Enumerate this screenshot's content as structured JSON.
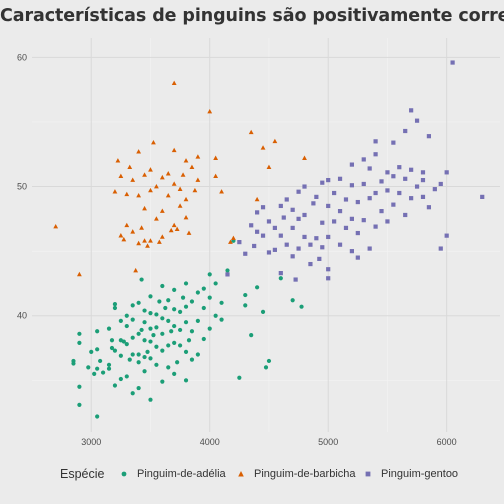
{
  "chart_data": {
    "type": "scatter",
    "title": "Características de pinguins são positivamente correlacionadas",
    "xlabel": "",
    "ylabel": "",
    "x_ticks": [
      3000,
      4000,
      5000,
      6000
    ],
    "y_ticks": [
      40,
      50,
      60
    ],
    "xlim": [
      2500,
      6450
    ],
    "ylim": [
      31,
      61.5
    ],
    "grid": true,
    "legend": {
      "title": "Espécie",
      "position": "bottom"
    },
    "series": [
      {
        "name": "Pinguim-de-adélia",
        "color": "#1b9e77",
        "marker": "circle",
        "points": [
          [
            2850,
            36.5
          ],
          [
            2850,
            36.3
          ],
          [
            2900,
            33.1
          ],
          [
            2900,
            34.5
          ],
          [
            2900,
            37.9
          ],
          [
            2900,
            38.6
          ],
          [
            2975,
            36.0
          ],
          [
            3000,
            37.2
          ],
          [
            3025,
            35.5
          ],
          [
            3050,
            32.2
          ],
          [
            3050,
            35.9
          ],
          [
            3050,
            37.4
          ],
          [
            3050,
            38.8
          ],
          [
            3075,
            36.5
          ],
          [
            3100,
            35.6
          ],
          [
            3150,
            35.9
          ],
          [
            3150,
            36.2
          ],
          [
            3150,
            39.0
          ],
          [
            3175,
            37.5
          ],
          [
            3175,
            38.1
          ],
          [
            3200,
            34.6
          ],
          [
            3200,
            37.3
          ],
          [
            3200,
            40.6
          ],
          [
            3200,
            40.9
          ],
          [
            3250,
            35.1
          ],
          [
            3250,
            36.9
          ],
          [
            3250,
            38.1
          ],
          [
            3250,
            39.6
          ],
          [
            3275,
            38.0
          ],
          [
            3300,
            35.3
          ],
          [
            3300,
            37.8
          ],
          [
            3300,
            39.2
          ],
          [
            3300,
            40.0
          ],
          [
            3325,
            36.6
          ],
          [
            3350,
            34.0
          ],
          [
            3350,
            37.0
          ],
          [
            3350,
            38.3
          ],
          [
            3350,
            39.7
          ],
          [
            3350,
            40.8
          ],
          [
            3400,
            34.4
          ],
          [
            3400,
            36.4
          ],
          [
            3400,
            37.0
          ],
          [
            3400,
            38.6
          ],
          [
            3400,
            41.0
          ],
          [
            3425,
            38.9
          ],
          [
            3425,
            42.8
          ],
          [
            3450,
            35.7
          ],
          [
            3450,
            36.8
          ],
          [
            3450,
            38.1
          ],
          [
            3450,
            39.5
          ],
          [
            3450,
            40.4
          ],
          [
            3475,
            37.2
          ],
          [
            3500,
            33.5
          ],
          [
            3500,
            36.7
          ],
          [
            3500,
            38.0
          ],
          [
            3500,
            39.0
          ],
          [
            3500,
            40.2
          ],
          [
            3500,
            41.5
          ],
          [
            3525,
            38.5
          ],
          [
            3550,
            36.2
          ],
          [
            3550,
            37.6
          ],
          [
            3550,
            39.1
          ],
          [
            3550,
            40.1
          ],
          [
            3575,
            41.1
          ],
          [
            3600,
            34.9
          ],
          [
            3600,
            37.3
          ],
          [
            3600,
            38.6
          ],
          [
            3600,
            39.8
          ],
          [
            3600,
            42.3
          ],
          [
            3625,
            40.6
          ],
          [
            3650,
            36.0
          ],
          [
            3650,
            37.7
          ],
          [
            3650,
            39.6
          ],
          [
            3650,
            41.2
          ],
          [
            3675,
            38.8
          ],
          [
            3700,
            35.5
          ],
          [
            3700,
            37.9
          ],
          [
            3700,
            39.2
          ],
          [
            3700,
            40.5
          ],
          [
            3700,
            42.0
          ],
          [
            3725,
            36.4
          ],
          [
            3750,
            37.7
          ],
          [
            3750,
            38.9
          ],
          [
            3750,
            40.3
          ],
          [
            3775,
            41.4
          ],
          [
            3800,
            35.0
          ],
          [
            3800,
            37.2
          ],
          [
            3800,
            39.5
          ],
          [
            3800,
            40.7
          ],
          [
            3800,
            42.5
          ],
          [
            3825,
            38.1
          ],
          [
            3850,
            36.6
          ],
          [
            3850,
            38.8
          ],
          [
            3850,
            41.1
          ],
          [
            3900,
            37.0
          ],
          [
            3900,
            39.6
          ],
          [
            3900,
            41.8
          ],
          [
            3950,
            38.2
          ],
          [
            3950,
            40.6
          ],
          [
            3950,
            42.1
          ],
          [
            4000,
            39.0
          ],
          [
            4000,
            41.4
          ],
          [
            4000,
            43.2
          ],
          [
            4050,
            40.0
          ],
          [
            4050,
            42.5
          ],
          [
            4100,
            39.7
          ],
          [
            4100,
            41.0
          ],
          [
            4150,
            43.5
          ],
          [
            4200,
            45.8
          ],
          [
            4250,
            35.2
          ],
          [
            4300,
            40.8
          ],
          [
            4300,
            41.6
          ],
          [
            4350,
            38.5
          ],
          [
            4400,
            42.2
          ],
          [
            4450,
            40.3
          ],
          [
            4475,
            36.0
          ],
          [
            4500,
            36.5
          ],
          [
            4600,
            42.9
          ],
          [
            4700,
            41.2
          ],
          [
            4775,
            40.7
          ]
        ]
      },
      {
        "name": "Pinguim-de-barbicha",
        "color": "#d95f02",
        "marker": "triangle",
        "points": [
          [
            2700,
            46.9
          ],
          [
            2900,
            43.2
          ],
          [
            3200,
            49.6
          ],
          [
            3225,
            52.0
          ],
          [
            3250,
            46.2
          ],
          [
            3250,
            50.8
          ],
          [
            3275,
            45.9
          ],
          [
            3300,
            47.0
          ],
          [
            3300,
            49.4
          ],
          [
            3325,
            51.5
          ],
          [
            3350,
            46.5
          ],
          [
            3350,
            50.5
          ],
          [
            3375,
            43.5
          ],
          [
            3400,
            45.6
          ],
          [
            3400,
            49.3
          ],
          [
            3400,
            52.7
          ],
          [
            3425,
            46.8
          ],
          [
            3450,
            45.8
          ],
          [
            3450,
            48.3
          ],
          [
            3450,
            50.9
          ],
          [
            3475,
            45.4
          ],
          [
            3500,
            45.8
          ],
          [
            3500,
            49.7
          ],
          [
            3500,
            51.3
          ],
          [
            3525,
            53.4
          ],
          [
            3550,
            47.5
          ],
          [
            3550,
            50.0
          ],
          [
            3575,
            45.7
          ],
          [
            3600,
            46.1
          ],
          [
            3600,
            48.1
          ],
          [
            3600,
            50.7
          ],
          [
            3650,
            49.3
          ],
          [
            3650,
            51.0
          ],
          [
            3675,
            46.6
          ],
          [
            3700,
            47.0
          ],
          [
            3700,
            50.2
          ],
          [
            3700,
            52.8
          ],
          [
            3700,
            58.0
          ],
          [
            3725,
            46.7
          ],
          [
            3750,
            48.5
          ],
          [
            3750,
            49.8
          ],
          [
            3775,
            50.9
          ],
          [
            3800,
            47.6
          ],
          [
            3800,
            49.0
          ],
          [
            3800,
            52.0
          ],
          [
            3825,
            46.4
          ],
          [
            3850,
            51.5
          ],
          [
            3875,
            49.7
          ],
          [
            3900,
            50.5
          ],
          [
            3900,
            52.3
          ],
          [
            4000,
            55.8
          ],
          [
            4050,
            50.8
          ],
          [
            4050,
            52.2
          ],
          [
            4100,
            49.6
          ],
          [
            4175,
            45.7
          ],
          [
            4200,
            46.0
          ],
          [
            4350,
            54.2
          ],
          [
            4400,
            49.0
          ],
          [
            4450,
            53.0
          ],
          [
            4500,
            51.5
          ],
          [
            4550,
            53.5
          ],
          [
            4800,
            52.2
          ]
        ]
      },
      {
        "name": "Pinguim-gentoo",
        "color": "#7570b3",
        "marker": "square",
        "points": [
          [
            4150,
            43.2
          ],
          [
            4250,
            45.7
          ],
          [
            4300,
            44.8
          ],
          [
            4350,
            47.0
          ],
          [
            4375,
            45.4
          ],
          [
            4400,
            46.5
          ],
          [
            4400,
            48.0
          ],
          [
            4450,
            46.2
          ],
          [
            4450,
            48.4
          ],
          [
            4500,
            44.9
          ],
          [
            4500,
            47.3
          ],
          [
            4550,
            45.1
          ],
          [
            4550,
            46.8
          ],
          [
            4600,
            43.3
          ],
          [
            4600,
            46.2
          ],
          [
            4600,
            48.5
          ],
          [
            4625,
            47.6
          ],
          [
            4650,
            45.5
          ],
          [
            4650,
            49.0
          ],
          [
            4700,
            44.6
          ],
          [
            4700,
            46.8
          ],
          [
            4700,
            48.2
          ],
          [
            4725,
            42.8
          ],
          [
            4750,
            45.2
          ],
          [
            4750,
            47.5
          ],
          [
            4750,
            49.6
          ],
          [
            4800,
            46.1
          ],
          [
            4800,
            47.8
          ],
          [
            4800,
            50.0
          ],
          [
            4850,
            44.0
          ],
          [
            4850,
            45.5
          ],
          [
            4875,
            48.7
          ],
          [
            4900,
            46.0
          ],
          [
            4900,
            49.2
          ],
          [
            4925,
            44.4
          ],
          [
            4950,
            45.3
          ],
          [
            4950,
            47.2
          ],
          [
            4950,
            50.3
          ],
          [
            5000,
            43.6
          ],
          [
            5000,
            46.1
          ],
          [
            5000,
            48.5
          ],
          [
            5000,
            50.5
          ],
          [
            5000,
            42.9
          ],
          [
            5050,
            47.3
          ],
          [
            5050,
            49.5
          ],
          [
            5100,
            45.5
          ],
          [
            5100,
            48.1
          ],
          [
            5100,
            50.6
          ],
          [
            5150,
            46.8
          ],
          [
            5150,
            49.0
          ],
          [
            5200,
            45.0
          ],
          [
            5200,
            47.5
          ],
          [
            5200,
            50.1
          ],
          [
            5200,
            51.7
          ],
          [
            5250,
            44.5
          ],
          [
            5250,
            46.4
          ],
          [
            5250,
            48.8
          ],
          [
            5300,
            47.4
          ],
          [
            5300,
            50.2
          ],
          [
            5300,
            52.1
          ],
          [
            5350,
            45.2
          ],
          [
            5350,
            49.1
          ],
          [
            5350,
            51.4
          ],
          [
            5400,
            46.9
          ],
          [
            5400,
            49.5
          ],
          [
            5400,
            52.5
          ],
          [
            5400,
            53.5
          ],
          [
            5450,
            48.1
          ],
          [
            5450,
            50.4
          ],
          [
            5500,
            47.3
          ],
          [
            5500,
            49.7
          ],
          [
            5500,
            51.1
          ],
          [
            5550,
            48.6
          ],
          [
            5550,
            50.8
          ],
          [
            5550,
            53.4
          ],
          [
            5600,
            49.5
          ],
          [
            5600,
            51.5
          ],
          [
            5650,
            47.8
          ],
          [
            5650,
            50.6
          ],
          [
            5650,
            54.3
          ],
          [
            5700,
            49.1
          ],
          [
            5700,
            51.3
          ],
          [
            5700,
            55.9
          ],
          [
            5750,
            50.0
          ],
          [
            5750,
            55.1
          ],
          [
            5800,
            49.2
          ],
          [
            5800,
            50.5
          ],
          [
            5800,
            51.1
          ],
          [
            5850,
            48.4
          ],
          [
            5850,
            53.9
          ],
          [
            5900,
            49.8
          ],
          [
            5950,
            45.2
          ],
          [
            5950,
            50.2
          ],
          [
            6000,
            51.1
          ],
          [
            6000,
            46.2
          ],
          [
            6050,
            59.6
          ],
          [
            6300,
            49.2
          ]
        ]
      }
    ]
  }
}
